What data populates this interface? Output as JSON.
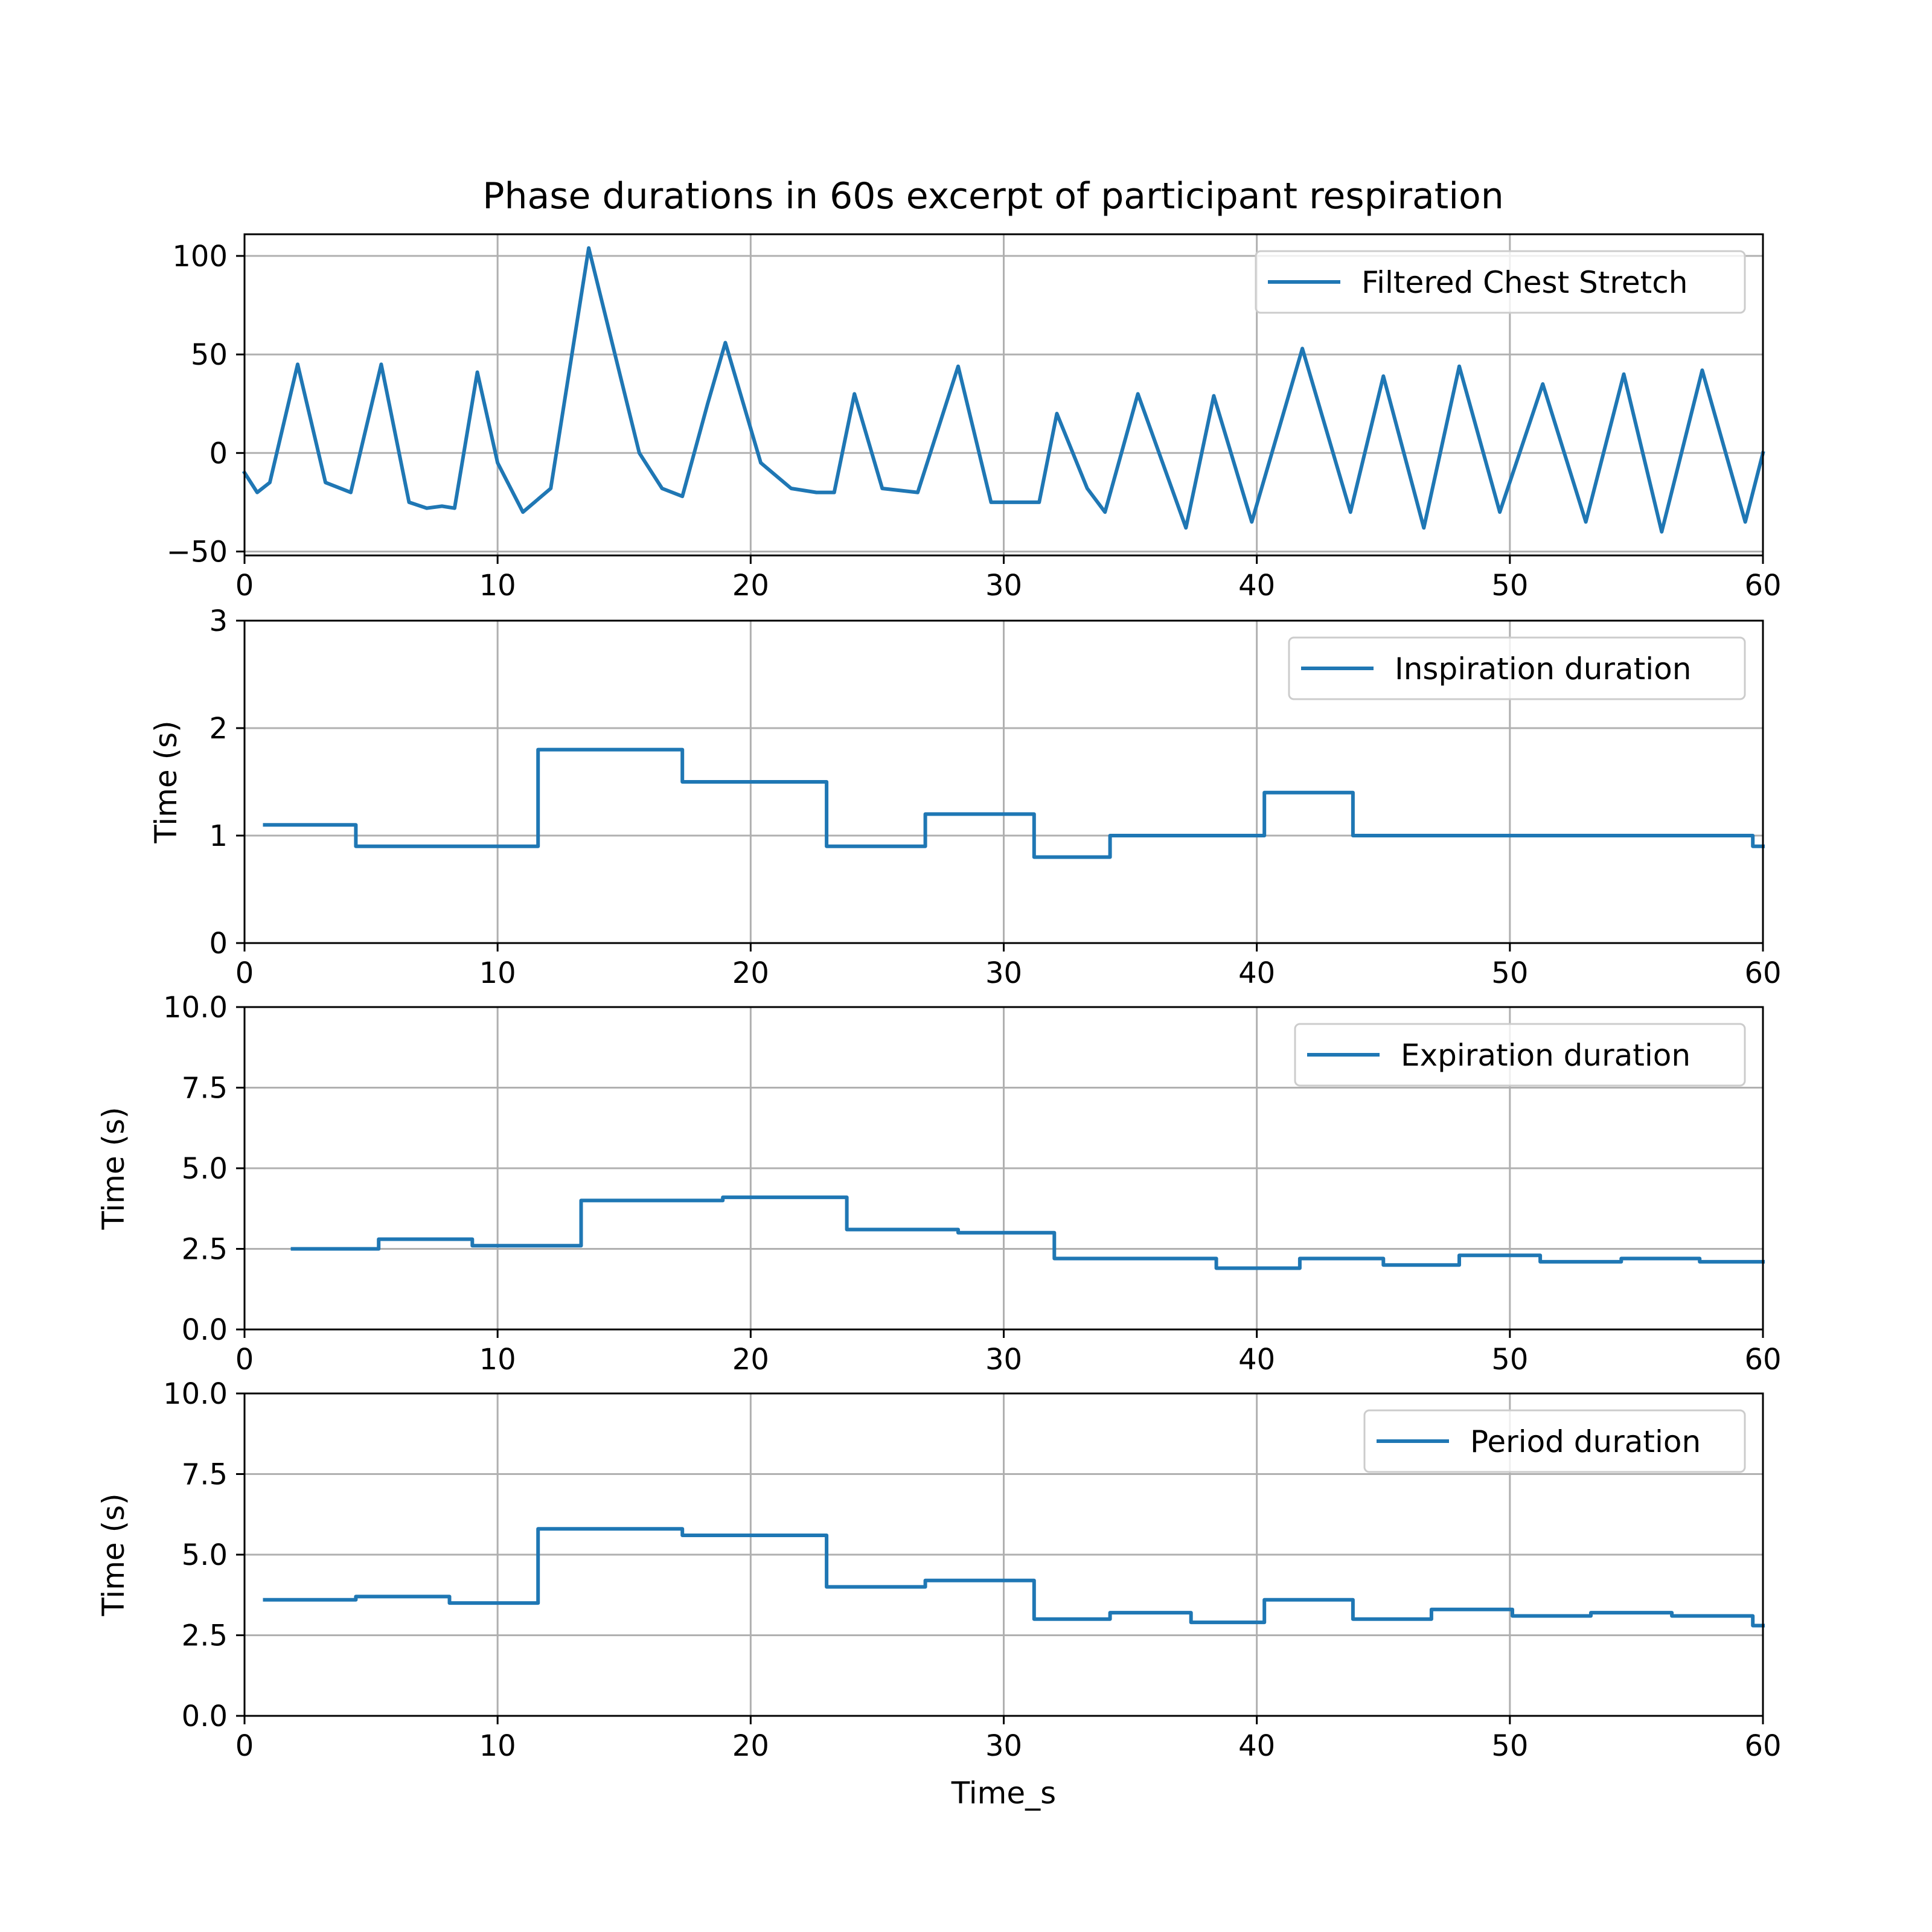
{
  "title": "Phase durations in 60s excerpt of participant respiration",
  "colors": {
    "line": "#1f77b4",
    "grid": "#b0b0b0",
    "axes": "#000000",
    "legend_border": "#cccccc"
  },
  "chart_data": [
    {
      "type": "line",
      "legend": "Filtered Chest Stretch",
      "legend_position": "top-right",
      "ylabel": "",
      "xlabel": "",
      "grid": true,
      "xlim": [
        0,
        60
      ],
      "ylim": [
        -52,
        111
      ],
      "xticks": [
        "0",
        "10",
        "20",
        "30",
        "40",
        "50",
        "60"
      ],
      "yticks": [
        "−50",
        "0",
        "50",
        "100"
      ],
      "ytick_values": [
        -50,
        0,
        50,
        100
      ],
      "x": [
        0,
        0.5,
        1.0,
        2.1,
        3.2,
        4.2,
        5.4,
        6.5,
        7.2,
        7.8,
        8.3,
        9.2,
        10.0,
        11.0,
        12.1,
        13.6,
        15.6,
        16.5,
        17.3,
        18.3,
        19.0,
        20.4,
        21.6,
        22.6,
        23.3,
        24.1,
        25.2,
        26.6,
        28.2,
        29.5,
        30.4,
        31.4,
        32.1,
        33.3,
        34.0,
        35.3,
        37.2,
        38.3,
        39.8,
        41.8,
        43.7,
        45.0,
        46.6,
        48.0,
        49.6,
        51.3,
        53.0,
        54.5,
        56.0,
        57.6,
        59.3,
        60.0
      ],
      "values": [
        -10,
        -20,
        -15,
        45,
        -15,
        -20,
        45,
        -25,
        -28,
        -27,
        -28,
        41,
        -5,
        -30,
        -18,
        104,
        0,
        -18,
        -22,
        25,
        56,
        -5,
        -18,
        -20,
        -20,
        30,
        -18,
        -20,
        44,
        -25,
        -25,
        -25,
        20,
        -18,
        -30,
        30,
        -38,
        29,
        -35,
        53,
        -30,
        39,
        -38,
        44,
        -30,
        35,
        -35,
        40,
        -40,
        42,
        -35,
        0
      ]
    },
    {
      "type": "line",
      "step": true,
      "legend": "Inspiration duration",
      "legend_position": "top-right",
      "ylabel": "Time (s)",
      "xlabel": "",
      "grid": true,
      "xlim": [
        0,
        60
      ],
      "ylim": [
        0,
        3
      ],
      "xticks": [
        "0",
        "10",
        "20",
        "30",
        "40",
        "50",
        "60"
      ],
      "yticks": [
        "0",
        "1",
        "2",
        "3"
      ],
      "ytick_values": [
        0,
        1,
        2,
        3
      ],
      "x": [
        0.8,
        4.4,
        11.6,
        17.3,
        23.0,
        26.9,
        31.2,
        34.2,
        40.3,
        43.8,
        59.6,
        60.0
      ],
      "values": [
        1.1,
        0.9,
        1.8,
        1.5,
        0.9,
        1.2,
        0.8,
        1.0,
        1.4,
        1.0,
        0.9,
        0.9
      ]
    },
    {
      "type": "line",
      "step": true,
      "legend": "Expiration duration",
      "legend_position": "top-right",
      "ylabel": "Time (s)",
      "xlabel": "",
      "grid": true,
      "xlim": [
        0,
        60
      ],
      "ylim": [
        0,
        10
      ],
      "xticks": [
        "0",
        "10",
        "20",
        "30",
        "40",
        "50",
        "60"
      ],
      "yticks": [
        "0.0",
        "2.5",
        "5.0",
        "7.5",
        "10.0"
      ],
      "ytick_values": [
        0,
        2.5,
        5.0,
        7.5,
        10.0
      ],
      "x": [
        1.9,
        5.3,
        9.0,
        13.3,
        18.9,
        23.8,
        28.2,
        32.0,
        38.4,
        41.7,
        45.0,
        48.0,
        51.2,
        54.4,
        57.5,
        60.0
      ],
      "values": [
        2.5,
        2.8,
        2.6,
        4.0,
        4.1,
        3.1,
        3.0,
        2.2,
        1.9,
        2.2,
        2.0,
        2.3,
        2.1,
        2.2,
        2.1,
        2.1
      ]
    },
    {
      "type": "line",
      "step": true,
      "legend": "Period duration",
      "legend_position": "top-right",
      "ylabel": "Time (s)",
      "xlabel": "Time_s",
      "grid": true,
      "xlim": [
        0,
        60
      ],
      "ylim": [
        0,
        10
      ],
      "xticks": [
        "0",
        "10",
        "20",
        "30",
        "40",
        "50",
        "60"
      ],
      "yticks": [
        "0.0",
        "2.5",
        "5.0",
        "7.5",
        "10.0"
      ],
      "ytick_values": [
        0,
        2.5,
        5.0,
        7.5,
        10.0
      ],
      "x": [
        0.8,
        4.4,
        8.1,
        11.6,
        17.3,
        23.0,
        26.9,
        31.2,
        34.2,
        37.4,
        40.3,
        43.8,
        46.9,
        50.1,
        53.2,
        56.4,
        59.6,
        60.0
      ],
      "values": [
        3.6,
        3.7,
        3.5,
        5.8,
        5.6,
        4.0,
        4.2,
        3.0,
        3.2,
        2.9,
        3.6,
        3.0,
        3.3,
        3.1,
        3.2,
        3.1,
        2.8,
        2.8
      ]
    }
  ]
}
